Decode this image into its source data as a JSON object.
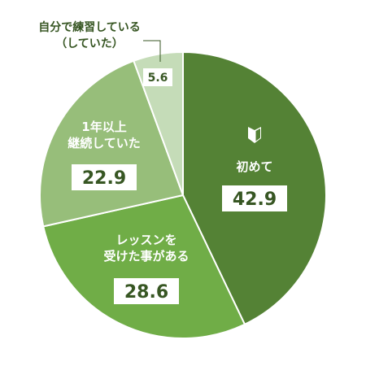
{
  "chart_data": {
    "type": "pie",
    "title": "",
    "start": "top",
    "direction": "clockwise",
    "slices": [
      {
        "label": "初めて",
        "label_lines": [
          "初めて"
        ],
        "value": 42.9,
        "value_text": "42.9",
        "color": "#548235",
        "icon": "beginner-mark-icon"
      },
      {
        "label": "レッスンを受けた事がある",
        "label_lines": [
          "レッスンを",
          "受けた事がある"
        ],
        "value": 28.6,
        "value_text": "28.6",
        "color": "#70AD47"
      },
      {
        "label": "1年以上継続していた",
        "label_lines": [
          "1年以上",
          "継続していた"
        ],
        "value": 22.9,
        "value_text": "22.9",
        "color": "#97BE7A"
      },
      {
        "label": "自分で練習している（していた）",
        "label_lines": [
          "自分で練習している",
          "（していた）"
        ],
        "value": 5.6,
        "value_text": "5.6",
        "color": "#C5DCB8"
      }
    ]
  },
  "colors": {
    "label_text": "#ffffff",
    "value_box_bg": "#ffffff",
    "value_box_text": "#375623",
    "outside_label_text": "#375623",
    "leader_line": "#375623",
    "separator": "#ffffff"
  }
}
